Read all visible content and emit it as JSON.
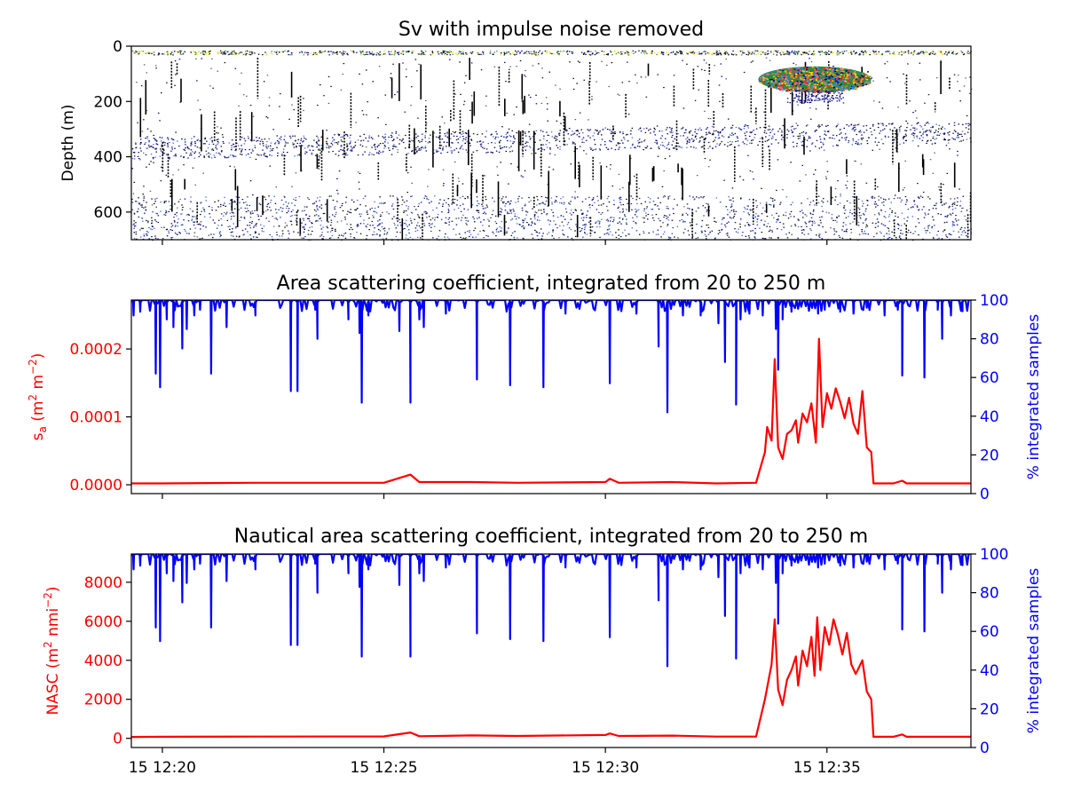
{
  "colors": {
    "red": "#ff0000",
    "blue": "#0000ff",
    "axis": "#000000",
    "echogram_background": "#ffffff",
    "echogram_noise": "#000000",
    "echogram_layer": "#000080"
  },
  "chart_data": [
    {
      "type": "heatmap",
      "title": "Sv with impulse noise removed",
      "ylabel": "Depth (m)",
      "ylim": [
        700,
        0
      ],
      "yticks": [
        0,
        200,
        400,
        600
      ],
      "xtick_labels": [
        "15 12:20",
        "15 12:25",
        "15 12:30",
        "15 12:35"
      ],
      "xlim_minutes": [
        19.3,
        38.25
      ],
      "features": [
        {
          "name": "surface layer",
          "depth": [
            15,
            30
          ]
        },
        {
          "name": "scattering layer",
          "depth": [
            300,
            370
          ]
        },
        {
          "name": "deep layer",
          "depth": [
            560,
            700
          ]
        },
        {
          "name": "fish school",
          "time_minutes": [
            33.45,
            36.0
          ],
          "depth": [
            60,
            190
          ]
        }
      ]
    },
    {
      "type": "line",
      "title": "Area scattering coefficient, integrated from 20 to 250 m",
      "ylabel": "s_a (m² m⁻²)",
      "ylabel_parts": {
        "main": "s",
        "sub": "a",
        "mid": " (m",
        "sup1": "2",
        "mid2": " m",
        "sup2": "−2",
        "end": ")"
      },
      "ylim": [
        -1.3e-05,
        0.000272
      ],
      "yticks": [
        0.0,
        0.0001,
        0.0002
      ],
      "ytick_labels": [
        "0.0000",
        "0.0001",
        "0.0002"
      ],
      "y2label": "% integrated samples",
      "y2lim": [
        0,
        100
      ],
      "y2ticks": [
        0,
        20,
        40,
        60,
        80,
        100
      ],
      "xtick_labels": [
        "15 12:20",
        "15 12:25",
        "15 12:30",
        "15 12:35"
      ],
      "xlim_minutes": [
        19.3,
        38.25
      ],
      "series": [
        {
          "axis": "left",
          "color": "#ff0000",
          "points": [
            [
              19.3,
              2e-06
            ],
            [
              20,
              2e-06
            ],
            [
              22,
              3e-06
            ],
            [
              25,
              3e-06
            ],
            [
              25.6,
              1.5e-05
            ],
            [
              25.8,
              4e-06
            ],
            [
              27,
              4e-06
            ],
            [
              28,
              3e-06
            ],
            [
              30,
              4e-06
            ],
            [
              30.1,
              9e-06
            ],
            [
              30.3,
              3e-06
            ],
            [
              31.5,
              4e-06
            ],
            [
              32.5,
              2e-06
            ],
            [
              33.4,
              3e-06
            ],
            [
              33.6,
              4.8e-05
            ],
            [
              33.65,
              8.5e-05
            ],
            [
              33.75,
              6.5e-05
            ],
            [
              33.82,
              0.000185
            ],
            [
              33.9,
              5.5e-05
            ],
            [
              34.0,
              3.8e-05
            ],
            [
              34.1,
              7.5e-05
            ],
            [
              34.2,
              8e-05
            ],
            [
              34.3,
              9.5e-05
            ],
            [
              34.35,
              6.2e-05
            ],
            [
              34.45,
              0.000105
            ],
            [
              34.55,
              9.2e-05
            ],
            [
              34.65,
              0.00012
            ],
            [
              34.75,
              6.2e-05
            ],
            [
              34.82,
              0.000215
            ],
            [
              34.9,
              8.5e-05
            ],
            [
              35.0,
              0.000135
            ],
            [
              35.1,
              0.000112
            ],
            [
              35.2,
              0.000142
            ],
            [
              35.3,
              0.000122
            ],
            [
              35.4,
              9.8e-05
            ],
            [
              35.5,
              0.000128
            ],
            [
              35.6,
              9e-05
            ],
            [
              35.7,
              7.5e-05
            ],
            [
              35.8,
              0.000138
            ],
            [
              35.9,
              5.5e-05
            ],
            [
              36.0,
              4.8e-05
            ],
            [
              36.05,
              2e-06
            ],
            [
              36.5,
              2e-06
            ],
            [
              36.7,
              6e-06
            ],
            [
              36.8,
              2e-06
            ],
            [
              38.25,
              2e-06
            ]
          ]
        },
        {
          "axis": "right",
          "color": "#0000ff",
          "baseline": 98,
          "dips": [
            [
              19.35,
              92
            ],
            [
              19.5,
              94
            ],
            [
              19.85,
              62
            ],
            [
              19.95,
              55
            ],
            [
              20.1,
              90
            ],
            [
              20.25,
              86
            ],
            [
              20.45,
              75
            ],
            [
              20.55,
              85
            ],
            [
              20.72,
              92
            ],
            [
              20.85,
              95
            ],
            [
              21.1,
              62
            ],
            [
              21.45,
              86
            ],
            [
              22.1,
              92
            ],
            [
              22.9,
              53
            ],
            [
              23.05,
              53
            ],
            [
              23.45,
              95
            ],
            [
              23.5,
              80
            ],
            [
              24.2,
              90
            ],
            [
              24.45,
              83
            ],
            [
              24.5,
              47
            ],
            [
              24.65,
              92
            ],
            [
              25.35,
              84
            ],
            [
              25.6,
              47
            ],
            [
              25.8,
              90
            ],
            [
              25.9,
              86
            ],
            [
              26.4,
              93
            ],
            [
              27.1,
              59
            ],
            [
              27.85,
              56
            ],
            [
              28.6,
              55
            ],
            [
              29.1,
              93
            ],
            [
              30.1,
              57
            ],
            [
              30.7,
              93
            ],
            [
              31.2,
              76
            ],
            [
              31.4,
              42
            ],
            [
              31.75,
              92
            ],
            [
              32.15,
              92
            ],
            [
              32.55,
              88
            ],
            [
              32.7,
              68
            ],
            [
              32.95,
              46
            ],
            [
              33.05,
              90
            ],
            [
              33.25,
              93
            ],
            [
              33.55,
              92
            ],
            [
              33.85,
              85
            ],
            [
              33.9,
              64
            ],
            [
              34.0,
              90
            ],
            [
              34.2,
              94
            ],
            [
              34.8,
              93
            ],
            [
              34.95,
              95
            ],
            [
              35.3,
              94
            ],
            [
              35.6,
              93
            ],
            [
              35.9,
              96
            ],
            [
              36.3,
              92
            ],
            [
              36.6,
              95
            ],
            [
              36.7,
              61
            ],
            [
              37.2,
              60
            ],
            [
              37.5,
              95
            ],
            [
              37.6,
              80
            ],
            [
              37.8,
              92
            ],
            [
              38.05,
              96
            ]
          ]
        }
      ]
    },
    {
      "type": "line",
      "title": "Nautical area scattering coefficient, integrated from 20 to 250 m",
      "ylabel": "NASC (m² nmi⁻²)",
      "ylabel_parts": {
        "main": "NASC (m",
        "sup1": "2",
        "mid": " nmi",
        "sup2": "−2",
        "end": ")"
      },
      "ylim": [
        -470,
        9450
      ],
      "yticks": [
        0,
        2000,
        4000,
        6000,
        8000
      ],
      "ytick_labels": [
        "0",
        "2000",
        "4000",
        "6000",
        "8000"
      ],
      "y2label": "% integrated samples",
      "y2lim": [
        0,
        100
      ],
      "y2ticks": [
        0,
        20,
        40,
        60,
        80,
        100
      ],
      "xtick_labels": [
        "15 12:20",
        "15 12:25",
        "15 12:30",
        "15 12:35"
      ],
      "xlim_minutes": [
        19.3,
        38.25
      ],
      "series": [
        {
          "axis": "left",
          "color": "#ff0000",
          "points": [
            [
              19.3,
              70
            ],
            [
              20,
              80
            ],
            [
              22,
              90
            ],
            [
              25,
              100
            ],
            [
              25.6,
              300
            ],
            [
              25.8,
              110
            ],
            [
              27,
              150
            ],
            [
              28,
              120
            ],
            [
              30,
              170
            ],
            [
              30.1,
              250
            ],
            [
              30.3,
              120
            ],
            [
              31.5,
              140
            ],
            [
              32.5,
              90
            ],
            [
              33.4,
              90
            ],
            [
              33.6,
              2000
            ],
            [
              33.7,
              3200
            ],
            [
              33.75,
              3800
            ],
            [
              33.82,
              6100
            ],
            [
              33.9,
              2500
            ],
            [
              34.0,
              1700
            ],
            [
              34.1,
              3000
            ],
            [
              34.2,
              3500
            ],
            [
              34.3,
              4200
            ],
            [
              34.35,
              2700
            ],
            [
              34.45,
              4500
            ],
            [
              34.55,
              3700
            ],
            [
              34.65,
              5200
            ],
            [
              34.72,
              3200
            ],
            [
              34.78,
              6200
            ],
            [
              34.85,
              3500
            ],
            [
              34.95,
              5700
            ],
            [
              35.05,
              4800
            ],
            [
              35.15,
              6100
            ],
            [
              35.25,
              5300
            ],
            [
              35.35,
              4300
            ],
            [
              35.45,
              5400
            ],
            [
              35.55,
              3800
            ],
            [
              35.65,
              3300
            ],
            [
              35.8,
              4000
            ],
            [
              35.9,
              2400
            ],
            [
              36.0,
              2000
            ],
            [
              36.05,
              80
            ],
            [
              36.5,
              80
            ],
            [
              36.7,
              200
            ],
            [
              36.8,
              80
            ],
            [
              38.25,
              80
            ]
          ]
        },
        {
          "axis": "right",
          "color": "#0000ff",
          "baseline": 98,
          "dips": "same as Area scattering coefficient panel"
        }
      ]
    }
  ]
}
